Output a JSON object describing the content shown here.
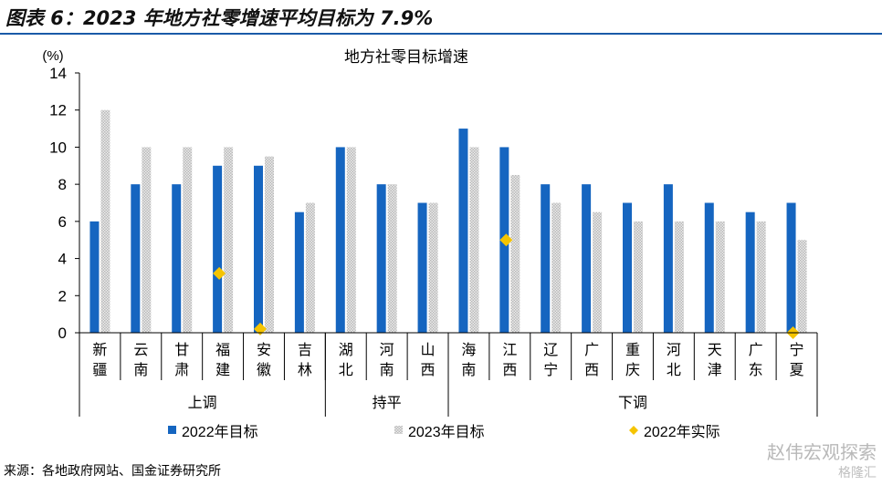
{
  "figure_title": "图表 6：2023 年地方社零增速平均目标为 7.9%",
  "source_note": "来源：各地政府网站、国金证券研究所",
  "watermark": "赵伟宏观探索",
  "watermark_sub": "格隆汇",
  "colors": {
    "series_2022": "#1565c0",
    "series_2023": "#d0d0d0",
    "actual_2022": "#f5c400",
    "title_rule": "#1a5aa8"
  },
  "chart_data": {
    "type": "bar",
    "title": "地方社零目标增速",
    "ylabel": "(%)",
    "ylim": [
      0,
      14
    ],
    "yticks": [
      0,
      2,
      4,
      6,
      8,
      10,
      12,
      14
    ],
    "grid": false,
    "legend_position": "bottom",
    "categories": [
      "新疆",
      "云南",
      "甘肃",
      "福建",
      "安徽",
      "吉林",
      "湖北",
      "河南",
      "山西",
      "海南",
      "江西",
      "辽宁",
      "广西",
      "重庆",
      "河北",
      "天津",
      "广东",
      "宁夏"
    ],
    "groups": [
      {
        "label": "上调",
        "count": 6
      },
      {
        "label": "持平",
        "count": 3
      },
      {
        "label": "下调",
        "count": 9
      }
    ],
    "series": [
      {
        "name": "2022年目标",
        "kind": "bar",
        "values": [
          6,
          8,
          8,
          9,
          9,
          6.5,
          10,
          8,
          7,
          11,
          10,
          8,
          8,
          7,
          8,
          7,
          6.5,
          7
        ]
      },
      {
        "name": "2023年目标",
        "kind": "bar",
        "values": [
          12,
          10,
          10,
          10,
          9.5,
          7,
          10,
          8,
          7,
          10,
          8.5,
          7,
          6.5,
          6,
          6,
          6,
          6,
          5
        ]
      },
      {
        "name": "2022年实际",
        "kind": "marker",
        "values": [
          null,
          null,
          null,
          3.2,
          0.2,
          null,
          null,
          null,
          null,
          null,
          5,
          null,
          null,
          null,
          null,
          null,
          null,
          0
        ]
      }
    ]
  }
}
